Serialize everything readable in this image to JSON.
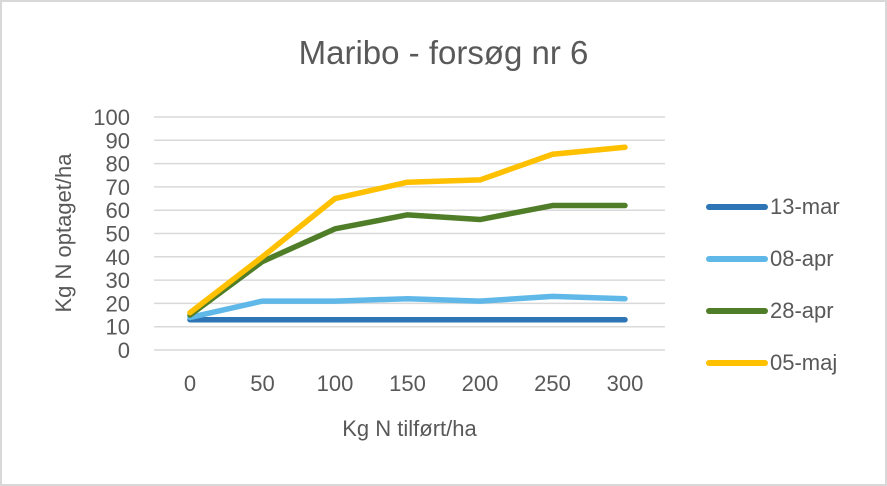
{
  "window": {
    "background": "#ffffff",
    "border_color": "#d8d8d8",
    "text_color": "#595959"
  },
  "chart_data": {
    "type": "line",
    "title": "Maribo - forsøg nr 6",
    "xlabel": "Kg N tilført/ha",
    "ylabel": "Kg N optaget/ha",
    "categories": [
      "0",
      "50",
      "100",
      "150",
      "200",
      "250",
      "300"
    ],
    "series": [
      {
        "name": "13-mar",
        "color": "#2E75B6",
        "values": [
          13,
          13,
          13,
          13,
          13,
          13,
          13
        ]
      },
      {
        "name": "08-apr",
        "color": "#5FB8E8",
        "values": [
          14,
          21,
          21,
          22,
          21,
          23,
          22
        ]
      },
      {
        "name": "28-apr",
        "color": "#507E28",
        "values": [
          15,
          38,
          52,
          58,
          56,
          62,
          62
        ]
      },
      {
        "name": "05-maj",
        "color": "#FFC000",
        "values": [
          16,
          40,
          65,
          72,
          73,
          84,
          87
        ]
      }
    ],
    "ylim": [
      0,
      100
    ],
    "yticks": [
      0,
      10,
      20,
      30,
      40,
      50,
      60,
      70,
      80,
      90,
      100
    ],
    "grid": "horizontal",
    "gridline_color": "#d9d9d9",
    "legend_position": "right",
    "line_width": 5.5
  }
}
